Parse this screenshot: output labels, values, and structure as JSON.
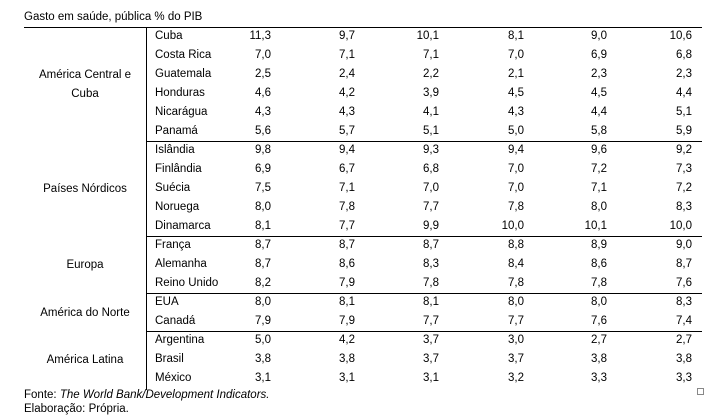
{
  "title": "Gasto em saúde, pública % do PIB",
  "groups": [
    {
      "region": "América Central e Cuba",
      "rows": [
        {
          "country": "Cuba",
          "values": [
            "11,3",
            "9,7",
            "10,1",
            "8,1",
            "9,0",
            "10,6"
          ]
        },
        {
          "country": "Costa Rica",
          "values": [
            "7,0",
            "7,1",
            "7,1",
            "7,0",
            "6,9",
            "6,8"
          ]
        },
        {
          "country": "Guatemala",
          "values": [
            "2,5",
            "2,4",
            "2,2",
            "2,1",
            "2,3",
            "2,3"
          ]
        },
        {
          "country": "Honduras",
          "values": [
            "4,6",
            "4,2",
            "3,9",
            "4,5",
            "4,5",
            "4,4"
          ]
        },
        {
          "country": "Nicarágua",
          "values": [
            "4,3",
            "4,3",
            "4,1",
            "4,3",
            "4,4",
            "5,1"
          ]
        },
        {
          "country": "Panamá",
          "values": [
            "5,6",
            "5,7",
            "5,1",
            "5,0",
            "5,8",
            "5,9"
          ]
        }
      ]
    },
    {
      "region": "Países Nórdicos",
      "rows": [
        {
          "country": "Islândia",
          "values": [
            "9,8",
            "9,4",
            "9,3",
            "9,4",
            "9,6",
            "9,2"
          ]
        },
        {
          "country": "Finlândia",
          "values": [
            "6,9",
            "6,7",
            "6,8",
            "7,0",
            "7,2",
            "7,3"
          ]
        },
        {
          "country": "Suécia",
          "values": [
            "7,5",
            "7,1",
            "7,0",
            "7,0",
            "7,1",
            "7,2"
          ]
        },
        {
          "country": "Noruega",
          "values": [
            "8,0",
            "7,8",
            "7,7",
            "7,8",
            "8,0",
            "8,3"
          ]
        },
        {
          "country": "Dinamarca",
          "values": [
            "8,1",
            "7,7",
            "9,9",
            "10,0",
            "10,1",
            "10,0"
          ]
        }
      ]
    },
    {
      "region": "Europa",
      "rows": [
        {
          "country": "França",
          "values": [
            "8,7",
            "8,7",
            "8,7",
            "8,8",
            "8,9",
            "9,0"
          ]
        },
        {
          "country": "Alemanha",
          "values": [
            "8,7",
            "8,6",
            "8,3",
            "8,4",
            "8,6",
            "8,7"
          ]
        },
        {
          "country": "Reino Unido",
          "values": [
            "8,2",
            "7,9",
            "7,8",
            "7,8",
            "7,8",
            "7,6"
          ]
        }
      ]
    },
    {
      "region": "América do Norte",
      "rows": [
        {
          "country": "EUA",
          "values": [
            "8,0",
            "8,1",
            "8,1",
            "8,0",
            "8,0",
            "8,3"
          ]
        },
        {
          "country": "Canadá",
          "values": [
            "7,9",
            "7,9",
            "7,7",
            "7,7",
            "7,6",
            "7,4"
          ]
        }
      ]
    },
    {
      "region": "América Latina",
      "rows": [
        {
          "country": "Argentina",
          "values": [
            "5,0",
            "4,2",
            "3,7",
            "3,0",
            "2,7",
            "2,7"
          ]
        },
        {
          "country": "Brasil",
          "values": [
            "3,8",
            "3,8",
            "3,7",
            "3,7",
            "3,8",
            "3,8"
          ]
        },
        {
          "country": "México",
          "values": [
            "3,1",
            "3,1",
            "3,1",
            "3,2",
            "3,3",
            "3,3"
          ]
        }
      ]
    }
  ],
  "footer": {
    "source_label": "Fonte: ",
    "source_text": "The World Bank/Development Indicators.",
    "elaboration": "Elaboração: Própria."
  }
}
